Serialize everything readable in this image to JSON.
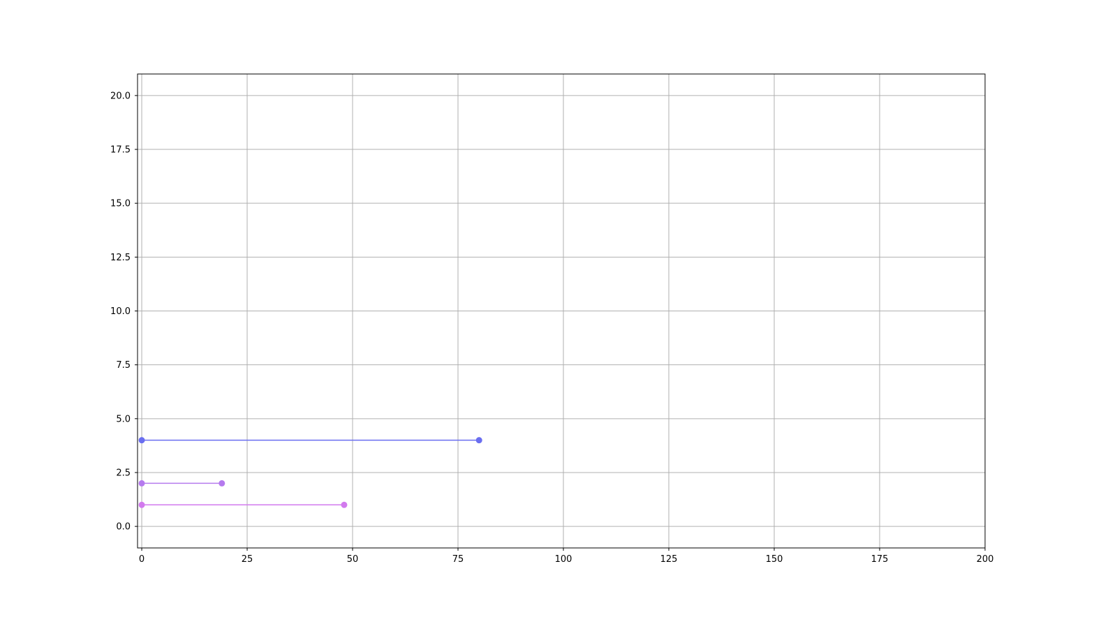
{
  "chart_data": {
    "type": "line",
    "title": "",
    "xlabel": "",
    "ylabel": "",
    "xlim": [
      -1,
      200
    ],
    "ylim": [
      -1,
      21
    ],
    "grid": true,
    "x_ticks": [
      0,
      25,
      50,
      75,
      100,
      125,
      150,
      175,
      200
    ],
    "x_tick_labels": [
      "0",
      "25",
      "50",
      "75",
      "100",
      "125",
      "150",
      "175",
      "200"
    ],
    "y_ticks": [
      0,
      2.5,
      5,
      7.5,
      10,
      12.5,
      15,
      17.5,
      20
    ],
    "y_tick_labels": [
      "0.0",
      "2.5",
      "5.0",
      "7.5",
      "10.0",
      "12.5",
      "15.0",
      "17.5",
      "20.0"
    ],
    "series": [
      {
        "x": [
          0,
          80
        ],
        "y": [
          4,
          4
        ],
        "color": "#6a6ef0",
        "marker": "circle"
      },
      {
        "x": [
          0,
          19
        ],
        "y": [
          2,
          2
        ],
        "color": "#b57aee",
        "marker": "circle"
      },
      {
        "x": [
          0,
          48
        ],
        "y": [
          1,
          1
        ],
        "color": "#d27aee",
        "marker": "circle"
      }
    ]
  }
}
